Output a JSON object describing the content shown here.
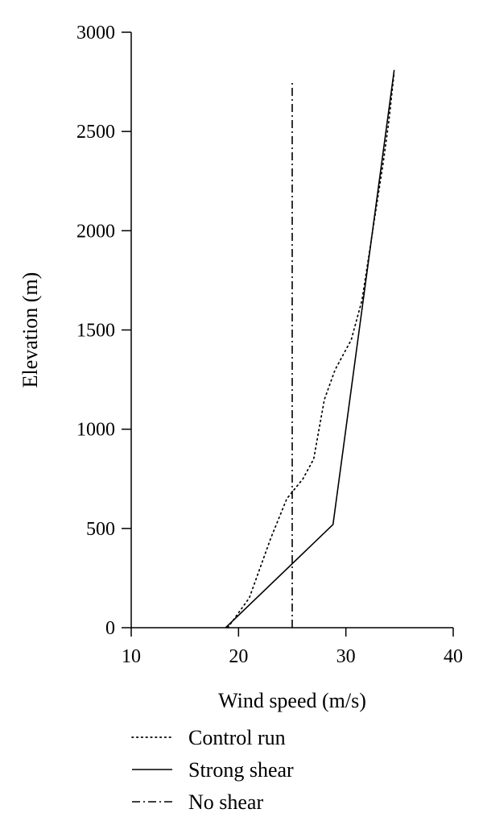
{
  "chart_data": {
    "type": "line",
    "title": "",
    "xlabel": "Wind speed (m/s)",
    "ylabel": "Elevation (m)",
    "xlim": [
      10,
      40
    ],
    "ylim": [
      0,
      3000
    ],
    "xticks": [
      10,
      20,
      30,
      40
    ],
    "yticks": [
      0,
      500,
      1000,
      1500,
      2000,
      2500,
      3000
    ],
    "xtick_labels": [
      "10",
      "20",
      "30",
      "40"
    ],
    "ytick_labels": [
      "0",
      "500",
      "1000",
      "1500",
      "2000",
      "2500",
      "3000"
    ],
    "grid": false,
    "legend_position": "bottom",
    "series": [
      {
        "name": "Control run",
        "style": "dotted",
        "color": "#000000",
        "points": [
          {
            "x": 19.0,
            "y": 0
          },
          {
            "x": 21.0,
            "y": 150
          },
          {
            "x": 23.0,
            "y": 450
          },
          {
            "x": 24.5,
            "y": 650
          },
          {
            "x": 26.0,
            "y": 750
          },
          {
            "x": 27.0,
            "y": 850
          },
          {
            "x": 27.5,
            "y": 1000
          },
          {
            "x": 28.0,
            "y": 1150
          },
          {
            "x": 29.0,
            "y": 1300
          },
          {
            "x": 30.5,
            "y": 1450
          },
          {
            "x": 31.5,
            "y": 1650
          },
          {
            "x": 32.5,
            "y": 2000
          },
          {
            "x": 33.5,
            "y": 2350
          },
          {
            "x": 34.0,
            "y": 2550
          },
          {
            "x": 34.5,
            "y": 2800
          }
        ]
      },
      {
        "name": "Strong shear",
        "style": "solid",
        "color": "#000000",
        "points": [
          {
            "x": 18.8,
            "y": 0
          },
          {
            "x": 28.8,
            "y": 520
          },
          {
            "x": 34.5,
            "y": 2810
          }
        ]
      },
      {
        "name": "No shear",
        "style": "dashdot",
        "color": "#000000",
        "points": [
          {
            "x": 25.0,
            "y": 0
          },
          {
            "x": 25.0,
            "y": 2750
          }
        ]
      }
    ]
  }
}
